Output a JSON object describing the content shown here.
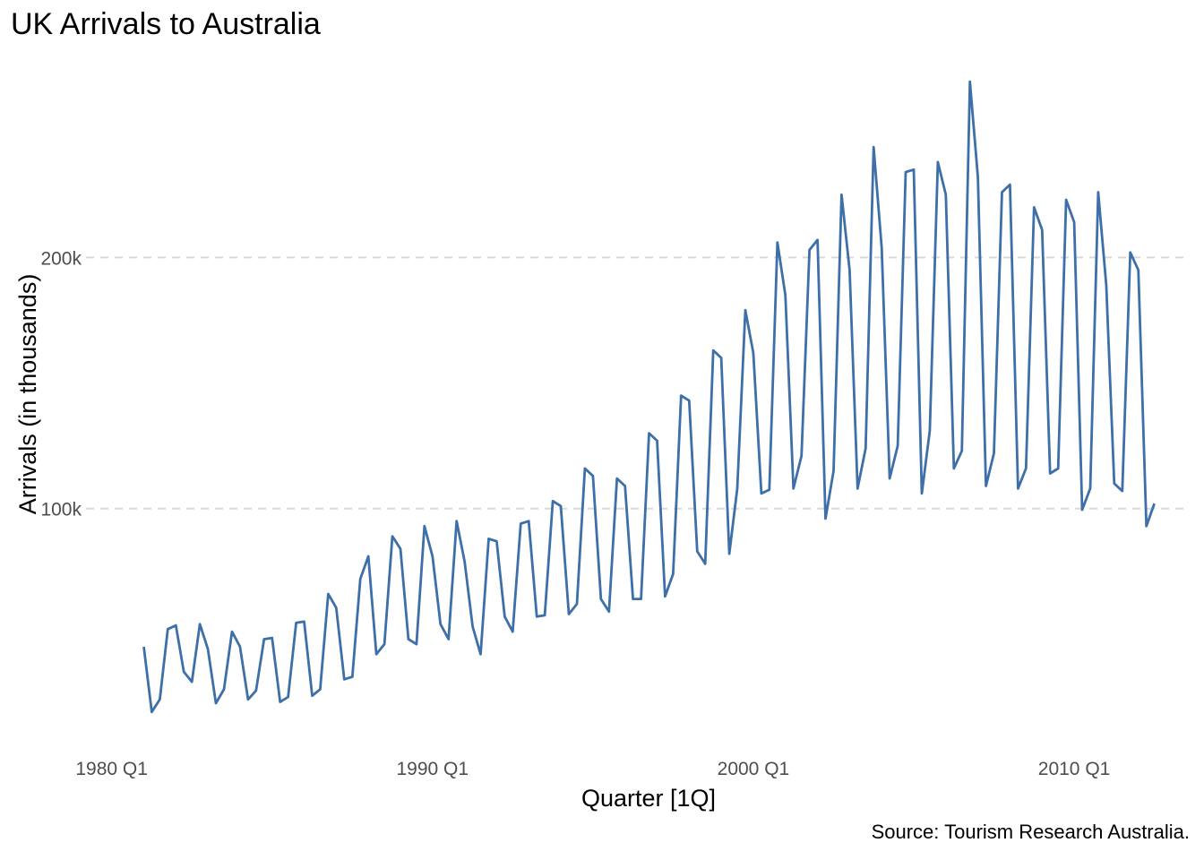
{
  "chart_data": {
    "type": "line",
    "title": "UK Arrivals to Australia",
    "xlabel": "Quarter [1Q]",
    "ylabel": "Arrivals (in thousands)",
    "caption": "Source: Tourism Research Australia.",
    "x_ticks": [
      {
        "value": 1980.0,
        "label": "1980 Q1"
      },
      {
        "value": 1990.0,
        "label": "1990 Q1"
      },
      {
        "value": 2000.0,
        "label": "2000 Q1"
      },
      {
        "value": 2010.0,
        "label": "2010 Q1"
      }
    ],
    "y_ticks": [
      {
        "value": 100000,
        "label": "100k"
      },
      {
        "value": 200000,
        "label": "200k"
      }
    ],
    "xlim": [
      1979.2,
      2013.6
    ],
    "ylim": [
      10000,
      274000
    ],
    "grid": {
      "major_y": true,
      "style": "dashed",
      "color": "#d9d9d9"
    },
    "line_color": "#3d6fa8",
    "series": [
      {
        "start_quarter": "1981 Q1",
        "values": [
          45000,
          19000,
          24000,
          52000,
          53500,
          35000,
          31000,
          54000,
          44000,
          22500,
          28000,
          51000,
          45000,
          24000,
          27500,
          48000,
          48500,
          23000,
          25000,
          54500,
          55000,
          25500,
          28000,
          66000,
          60500,
          32000,
          33000,
          72000,
          81000,
          42000,
          46000,
          89000,
          84000,
          48000,
          46000,
          93000,
          81000,
          54000,
          48000,
          95000,
          79000,
          53000,
          42000,
          88000,
          87000,
          57000,
          51000,
          94000,
          95000,
          57000,
          57500,
          103000,
          101000,
          58000,
          62000,
          116000,
          113000,
          64000,
          59000,
          112000,
          109000,
          64000,
          64000,
          130000,
          127000,
          65000,
          74000,
          145000,
          143000,
          83000,
          78000,
          163000,
          160000,
          82000,
          108000,
          179000,
          162000,
          106000,
          107500,
          206000,
          185000,
          108000,
          121000,
          203000,
          207000,
          96000,
          115000,
          225000,
          195000,
          108000,
          124000,
          244000,
          204000,
          112000,
          125000,
          234000,
          235000,
          106000,
          131000,
          238000,
          225000,
          116000,
          123000,
          270000,
          232000,
          109000,
          122000,
          226000,
          229000,
          108000,
          116000,
          220000,
          211000,
          114000,
          116000,
          223000,
          214000,
          99500,
          108000,
          226000,
          189000,
          110000,
          107000,
          202000,
          195000,
          93000,
          102000
        ]
      }
    ]
  }
}
